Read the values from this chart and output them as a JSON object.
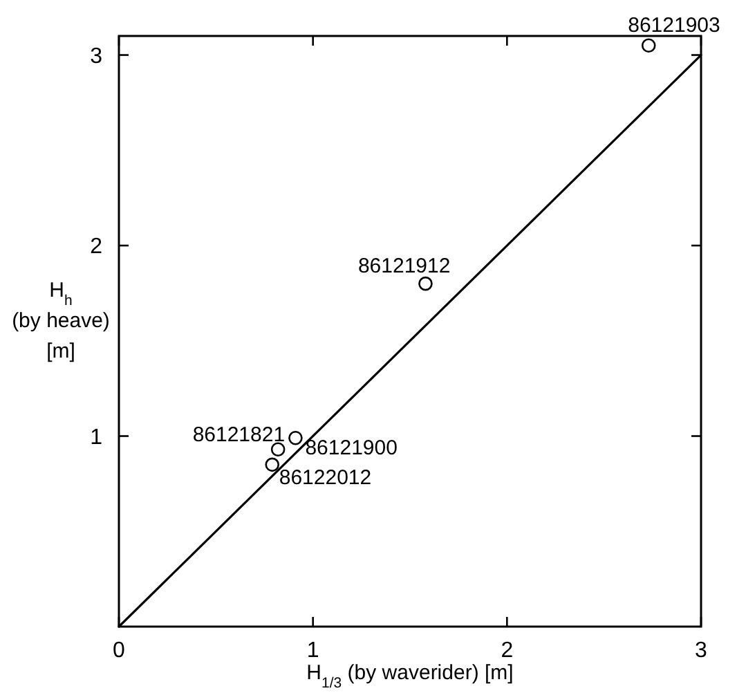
{
  "chart_data": {
    "type": "scatter",
    "xlabel": "H$_{1/3}$ (by waverider) [m]",
    "ylabel": "H$_{h}$\n(by heave)\n[m]",
    "xlim": [
      0,
      3
    ],
    "ylim": [
      0,
      3.1
    ],
    "xticks": [
      0,
      1,
      2,
      3
    ],
    "yticks": [
      1,
      2,
      3
    ],
    "marker": "circle",
    "series": [
      {
        "type": "line",
        "marker": "none",
        "x": [
          0,
          3
        ],
        "values": [
          0,
          3
        ],
        "color": "#000000"
      },
      {
        "x": [
          2.73,
          1.58,
          0.82,
          0.91,
          0.79
        ],
        "values": [
          3.05,
          1.8,
          0.93,
          0.99,
          0.85
        ],
        "color": "#000000"
      }
    ],
    "annotations": [
      {
        "text": "86121903",
        "x": 2.73,
        "y": 3.05
      },
      {
        "text": "86121912",
        "x": 1.58,
        "y": 1.8
      },
      {
        "text": "86121821",
        "x": 0.82,
        "y": 0.93
      },
      {
        "text": "86121900",
        "x": 0.91,
        "y": 0.99
      },
      {
        "text": "86122012",
        "x": 0.79,
        "y": 0.85
      }
    ]
  }
}
